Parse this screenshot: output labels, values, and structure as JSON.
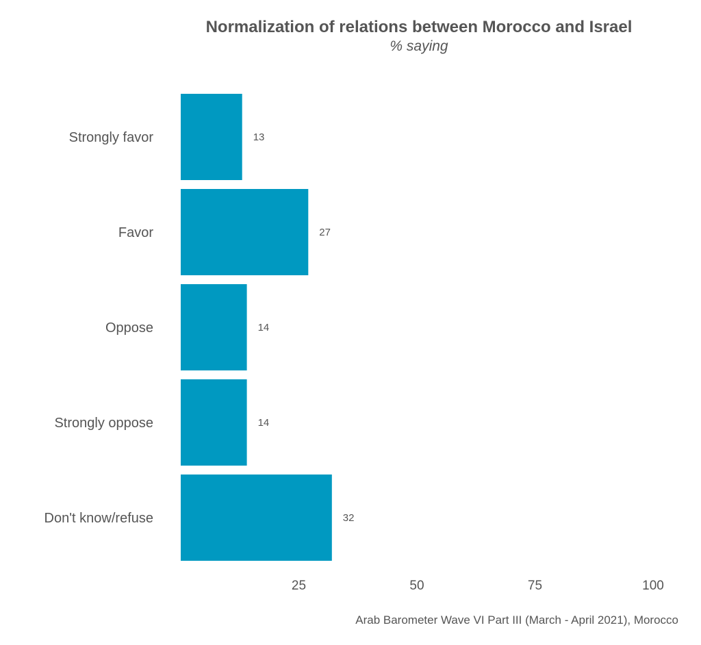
{
  "chart_data": {
    "type": "bar",
    "orientation": "horizontal",
    "title": "Normalization of relations between Morocco and Israel",
    "subtitle": "% saying",
    "categories": [
      "Strongly favor",
      "Favor",
      "Oppose",
      "Strongly oppose",
      "Don't know/refuse"
    ],
    "values": [
      13,
      27,
      14,
      14,
      32
    ],
    "xlim": [
      0,
      100
    ],
    "xticks": [
      25,
      50,
      75,
      100
    ],
    "grid": false,
    "bar_color": "#0099c1",
    "caption": "Arab Barometer Wave VI Part III (March - April 2021), Morocco"
  }
}
